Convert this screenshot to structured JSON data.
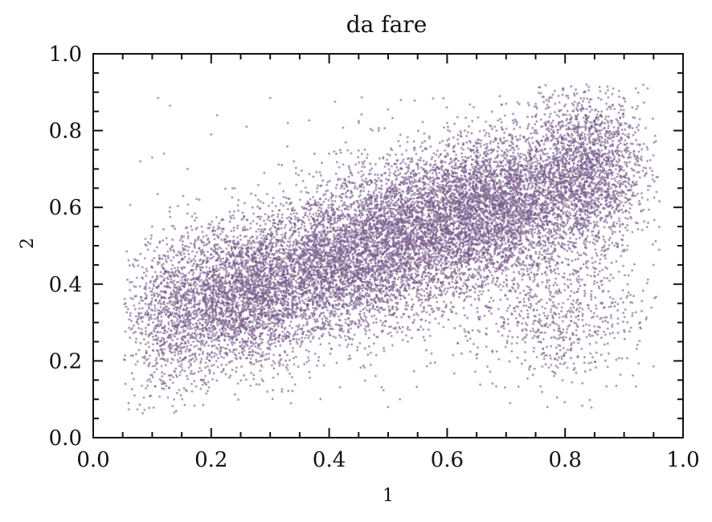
{
  "chart_data": {
    "type": "scatter",
    "title": "da fare",
    "xlabel": "1",
    "ylabel": "2",
    "xlim": [
      0.0,
      1.0
    ],
    "ylim": [
      0.0,
      1.0
    ],
    "x_ticks": [
      "0.0",
      "0.2",
      "0.4",
      "0.6",
      "0.8",
      "1.0"
    ],
    "y_ticks": [
      "0.0",
      "0.2",
      "0.4",
      "0.6",
      "0.8",
      "1.0"
    ],
    "grid": false,
    "marker_color": "#7a5c8c",
    "marker_alpha": 0.6,
    "points": [
      [
        0.11,
        0.885
      ],
      [
        0.13,
        0.865
      ],
      [
        0.21,
        0.84
      ],
      [
        0.3,
        0.885
      ],
      [
        0.41,
        0.875
      ],
      [
        0.5,
        0.855
      ],
      [
        0.84,
        0.905
      ],
      [
        0.88,
        0.895
      ],
      [
        0.92,
        0.91
      ],
      [
        0.94,
        0.91
      ],
      [
        0.955,
        0.64
      ],
      [
        0.95,
        0.45
      ],
      [
        0.93,
        0.33
      ],
      [
        0.9,
        0.28
      ],
      [
        0.77,
        0.08
      ],
      [
        0.5,
        0.08
      ],
      [
        0.52,
        0.1
      ],
      [
        0.32,
        0.12
      ],
      [
        0.06,
        0.09
      ],
      [
        0.07,
        0.11
      ],
      [
        0.055,
        0.35
      ],
      [
        0.08,
        0.72
      ],
      [
        0.1,
        0.73
      ],
      [
        0.12,
        0.74
      ],
      [
        0.16,
        0.7
      ],
      [
        0.2,
        0.79
      ],
      [
        0.26,
        0.81
      ],
      [
        0.33,
        0.82
      ],
      [
        0.45,
        0.82
      ],
      [
        0.6,
        0.82
      ],
      [
        0.7,
        0.87
      ],
      [
        0.75,
        0.87
      ],
      [
        0.82,
        0.83
      ],
      [
        0.86,
        0.84
      ],
      [
        0.15,
        0.52
      ],
      [
        0.18,
        0.45
      ],
      [
        0.22,
        0.38
      ],
      [
        0.25,
        0.31
      ],
      [
        0.28,
        0.44
      ],
      [
        0.31,
        0.39
      ],
      [
        0.35,
        0.47
      ],
      [
        0.38,
        0.35
      ],
      [
        0.41,
        0.5
      ],
      [
        0.44,
        0.41
      ],
      [
        0.47,
        0.55
      ],
      [
        0.5,
        0.47
      ],
      [
        0.53,
        0.58
      ],
      [
        0.56,
        0.5
      ],
      [
        0.59,
        0.62
      ],
      [
        0.62,
        0.55
      ],
      [
        0.65,
        0.66
      ],
      [
        0.68,
        0.59
      ],
      [
        0.71,
        0.7
      ],
      [
        0.74,
        0.63
      ],
      [
        0.77,
        0.74
      ],
      [
        0.8,
        0.67
      ],
      [
        0.83,
        0.78
      ],
      [
        0.86,
        0.71
      ],
      [
        0.89,
        0.82
      ],
      [
        0.12,
        0.22
      ],
      [
        0.14,
        0.18
      ],
      [
        0.17,
        0.25
      ],
      [
        0.19,
        0.3
      ],
      [
        0.23,
        0.27
      ],
      [
        0.27,
        0.24
      ],
      [
        0.32,
        0.29
      ],
      [
        0.36,
        0.31
      ],
      [
        0.39,
        0.27
      ],
      [
        0.43,
        0.33
      ],
      [
        0.48,
        0.3
      ],
      [
        0.54,
        0.34
      ],
      [
        0.58,
        0.31
      ],
      [
        0.63,
        0.36
      ],
      [
        0.67,
        0.34
      ],
      [
        0.72,
        0.39
      ],
      [
        0.76,
        0.36
      ],
      [
        0.81,
        0.4
      ],
      [
        0.85,
        0.44
      ],
      [
        0.9,
        0.49
      ],
      [
        0.92,
        0.56
      ],
      [
        0.94,
        0.62
      ],
      [
        0.09,
        0.44
      ],
      [
        0.1,
        0.55
      ],
      [
        0.13,
        0.6
      ],
      [
        0.18,
        0.62
      ],
      [
        0.24,
        0.65
      ],
      [
        0.29,
        0.69
      ],
      [
        0.34,
        0.72
      ],
      [
        0.4,
        0.74
      ],
      [
        0.46,
        0.72
      ],
      [
        0.52,
        0.76
      ],
      [
        0.57,
        0.78
      ],
      [
        0.63,
        0.8
      ],
      [
        0.69,
        0.83
      ],
      [
        0.79,
        0.85
      ],
      [
        0.87,
        0.87
      ]
    ]
  }
}
